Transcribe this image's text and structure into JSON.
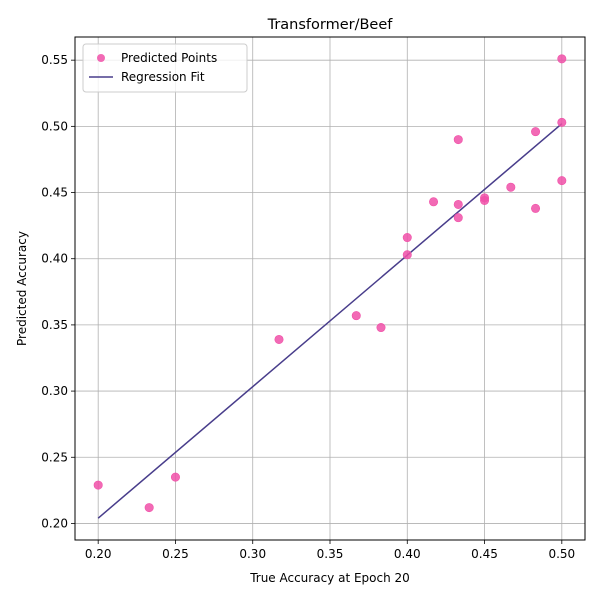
{
  "chart_data": {
    "type": "scatter",
    "title": "Transformer/Beef",
    "xlabel": "True Accuracy at Epoch 20",
    "ylabel": "Predicted Accuracy",
    "xlim": [
      0.185,
      0.515
    ],
    "ylim": [
      0.1875,
      0.5675
    ],
    "xticks": [
      "0.20",
      "0.25",
      "0.30",
      "0.35",
      "0.40",
      "0.45",
      "0.50"
    ],
    "yticks": [
      "0.20",
      "0.25",
      "0.30",
      "0.35",
      "0.40",
      "0.45",
      "0.50",
      "0.55"
    ],
    "grid": true,
    "legend_position": "upper-left",
    "series": [
      {
        "name": "Predicted Points",
        "kind": "scatter",
        "color": "#f050a8",
        "points": [
          {
            "x": 0.2,
            "y": 0.229
          },
          {
            "x": 0.233,
            "y": 0.212
          },
          {
            "x": 0.25,
            "y": 0.235
          },
          {
            "x": 0.317,
            "y": 0.339
          },
          {
            "x": 0.367,
            "y": 0.357
          },
          {
            "x": 0.383,
            "y": 0.348
          },
          {
            "x": 0.4,
            "y": 0.403
          },
          {
            "x": 0.4,
            "y": 0.416
          },
          {
            "x": 0.417,
            "y": 0.443
          },
          {
            "x": 0.433,
            "y": 0.431
          },
          {
            "x": 0.433,
            "y": 0.441
          },
          {
            "x": 0.433,
            "y": 0.49
          },
          {
            "x": 0.45,
            "y": 0.444
          },
          {
            "x": 0.45,
            "y": 0.446
          },
          {
            "x": 0.467,
            "y": 0.454
          },
          {
            "x": 0.483,
            "y": 0.438
          },
          {
            "x": 0.483,
            "y": 0.496
          },
          {
            "x": 0.5,
            "y": 0.459
          },
          {
            "x": 0.5,
            "y": 0.503
          },
          {
            "x": 0.5,
            "y": 0.551
          }
        ]
      },
      {
        "name": "Regression Fit",
        "kind": "line",
        "color": "#483d8b",
        "points": [
          {
            "x": 0.2,
            "y": 0.204
          },
          {
            "x": 0.5,
            "y": 0.502
          }
        ]
      }
    ]
  }
}
